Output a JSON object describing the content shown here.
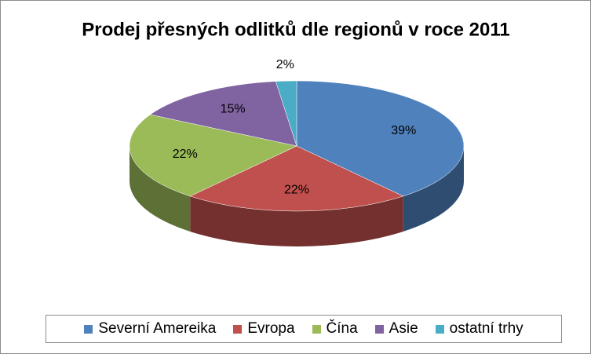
{
  "chart_data": {
    "type": "pie",
    "title": "Prodej přesných odlitků dle regionů v roce 2011",
    "categories": [
      "Severní Amereika",
      "Evropa",
      "Čína",
      "Asie",
      "ostatní trhy"
    ],
    "values": [
      39,
      22,
      22,
      15,
      2
    ],
    "value_labels": [
      "39%",
      "22%",
      "22%",
      "15%",
      "2%"
    ],
    "colors": [
      "#4f81bd",
      "#c0504d",
      "#9bbb59",
      "#8064a2",
      "#4bacc6"
    ],
    "legend": "bottom"
  }
}
